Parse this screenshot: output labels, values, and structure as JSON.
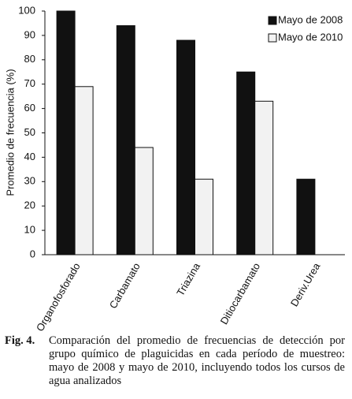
{
  "chart_data": {
    "type": "bar",
    "y_label": "Promedio de frecuencia  (%)",
    "categories": [
      "Organofosforado",
      "Carbamato",
      "Triazina",
      "Ditiocarbamato",
      "Deriv.Urea"
    ],
    "series": [
      {
        "name": "Mayo de 2008",
        "color": "#111111",
        "values": [
          100,
          94,
          88,
          75,
          31
        ]
      },
      {
        "name": "Mayo de 2010",
        "color": "#f2f2f2",
        "values": [
          69,
          44,
          31,
          63,
          null
        ]
      }
    ],
    "ylim": [
      0,
      100
    ],
    "yticks": [
      0,
      10,
      20,
      30,
      40,
      50,
      60,
      70,
      80,
      90,
      100
    ],
    "grid": false,
    "legend": "top-right",
    "caption_label": "Fig. 4.",
    "caption_text": "Comparación del promedio de frecuencias de detección por grupo químico de plaguicidas en cada período de muestreo: mayo de 2008 y mayo de 2010, incluyendo todos los cursos de agua analizados"
  }
}
